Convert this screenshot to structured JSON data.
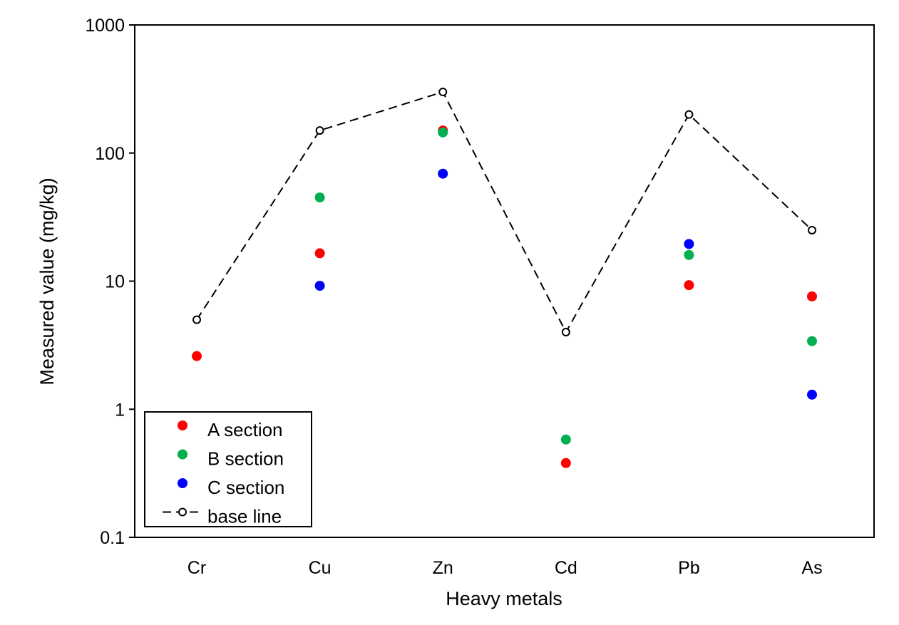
{
  "chart_data": {
    "type": "scatter",
    "xlabel": "Heavy metals",
    "ylabel": "Measured value (mg/kg)",
    "yscale": "log",
    "ylim": [
      0.1,
      1000
    ],
    "yticks": [
      0.1,
      1,
      10,
      100,
      1000
    ],
    "ytick_labels": [
      "0.1",
      "1",
      "10",
      "100",
      "1000"
    ],
    "categories": [
      "Cr",
      "Cu",
      "Zn",
      "Cd",
      "Pb",
      "As"
    ],
    "grid": false,
    "legend_position": "bottom-left",
    "series": [
      {
        "name": "A section",
        "kind": "scatter",
        "color": "#ff0000",
        "values": [
          2.6,
          16.5,
          150,
          0.38,
          9.3,
          7.6
        ]
      },
      {
        "name": "B section",
        "kind": "scatter",
        "color": "#00b050",
        "values": [
          null,
          45,
          145,
          0.58,
          16,
          3.4
        ]
      },
      {
        "name": "C section",
        "kind": "scatter",
        "color": "#0000ff",
        "values": [
          null,
          9.2,
          69,
          null,
          19.5,
          1.3
        ]
      },
      {
        "name": "base line",
        "kind": "line",
        "style": "dashed",
        "marker": "open-circle",
        "color": "#000000",
        "values": [
          5,
          150,
          300,
          4,
          200,
          25
        ]
      }
    ]
  }
}
